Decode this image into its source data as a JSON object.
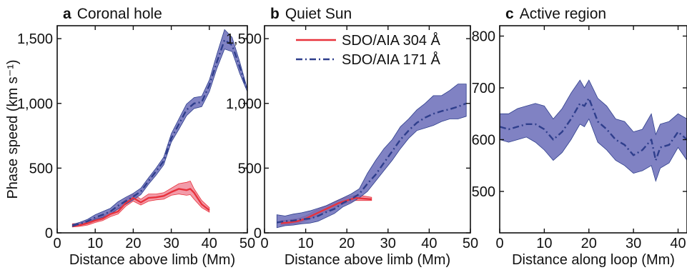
{
  "colors": {
    "red_line": "#e8323c",
    "red_band": "#f08a9a",
    "blue_line": "#2e3e8c",
    "blue_band": "#6a6cb8",
    "axis": "#111111"
  },
  "legend": {
    "items": [
      {
        "label": "SDO/AIA 304 Å",
        "color": "#e8323c",
        "style": "solid"
      },
      {
        "label": "SDO/AIA 171 Å",
        "color": "#2e3e8c",
        "style": "dash-dot"
      }
    ]
  },
  "chart_data": [
    {
      "type": "line",
      "panel_letter": "a",
      "title": "Coronal hole",
      "xlabel": "Distance above limb (Mm)",
      "ylabel": "Phase speed (km s⁻¹)",
      "xlim": [
        0,
        50
      ],
      "ylim": [
        0,
        1600
      ],
      "xticks": [
        0,
        10,
        20,
        30,
        40,
        50
      ],
      "xtick_labels": [
        "0",
        "10",
        "20",
        "30",
        "40",
        "50"
      ],
      "yticks": [
        0,
        500,
        1000,
        1500
      ],
      "ytick_labels": [
        "0",
        "500",
        "1,000",
        "1,500"
      ],
      "series": [
        {
          "color": "#e8323c",
          "band_color": "#f08a9a",
          "style": "solid",
          "x": [
            4,
            6,
            8,
            10,
            12,
            14,
            16,
            18,
            20,
            22,
            24,
            26,
            28,
            30,
            32,
            34,
            35,
            36,
            38,
            40
          ],
          "y": [
            55,
            60,
            75,
            95,
            110,
            145,
            165,
            230,
            270,
            235,
            270,
            275,
            285,
            315,
            340,
            330,
            340,
            310,
            220,
            175
          ],
          "lower": [
            45,
            50,
            60,
            80,
            95,
            125,
            145,
            205,
            245,
            215,
            245,
            255,
            260,
            290,
            300,
            290,
            295,
            260,
            195,
            160
          ],
          "upper": [
            70,
            75,
            90,
            115,
            130,
            170,
            200,
            260,
            300,
            260,
            300,
            300,
            310,
            345,
            380,
            390,
            400,
            340,
            250,
            195
          ]
        },
        {
          "color": "#2e3e8c",
          "band_color": "#6a6cb8",
          "style": "dash-dot",
          "x": [
            4,
            6,
            8,
            10,
            12,
            14,
            16,
            18,
            20,
            22,
            24,
            26,
            28,
            30,
            32,
            34,
            36,
            38,
            40,
            42,
            44,
            46,
            48,
            50
          ],
          "y": [
            55,
            70,
            90,
            120,
            140,
            165,
            210,
            245,
            280,
            320,
            400,
            475,
            555,
            730,
            840,
            950,
            1000,
            1010,
            1140,
            1320,
            1490,
            1450,
            1280,
            1100
          ],
          "lower": [
            48,
            60,
            78,
            105,
            120,
            145,
            185,
            220,
            255,
            295,
            375,
            445,
            525,
            700,
            800,
            905,
            960,
            975,
            1090,
            1270,
            1420,
            1400,
            1230,
            1090
          ],
          "upper": [
            65,
            82,
            105,
            140,
            165,
            190,
            240,
            275,
            305,
            345,
            425,
            500,
            585,
            765,
            880,
            995,
            1045,
            1055,
            1180,
            1380,
            1570,
            1510,
            1320,
            1110
          ]
        }
      ]
    },
    {
      "type": "line",
      "panel_letter": "b",
      "title": "Quiet Sun",
      "xlabel": "Distance above limb (Mm)",
      "ylabel": "",
      "xlim": [
        0,
        50
      ],
      "ylim": [
        0,
        1600
      ],
      "xticks": [
        0,
        10,
        20,
        30,
        40,
        50
      ],
      "xtick_labels": [
        "0",
        "10",
        "20",
        "30",
        "40",
        "50"
      ],
      "yticks": [
        0,
        500,
        1000,
        1500
      ],
      "ytick_labels": [
        "0",
        "500",
        "1,000",
        "1,500"
      ],
      "series": [
        {
          "color": "#e8323c",
          "band_color": "#f08a9a",
          "style": "solid",
          "x": [
            4,
            6,
            8,
            10,
            12,
            14,
            16,
            18,
            20,
            22,
            24,
            26
          ],
          "y": [
            75,
            80,
            90,
            110,
            140,
            170,
            200,
            230,
            250,
            270,
            265,
            260
          ],
          "lower": [
            60,
            65,
            75,
            95,
            120,
            150,
            180,
            210,
            230,
            250,
            250,
            250
          ],
          "upper": [
            95,
            100,
            110,
            130,
            165,
            195,
            225,
            255,
            275,
            290,
            285,
            275
          ]
        },
        {
          "color": "#2e3e8c",
          "band_color": "#6a6cb8",
          "style": "dash-dot",
          "x": [
            3,
            5,
            7,
            9,
            11,
            13,
            15,
            17,
            19,
            21,
            23,
            25,
            27,
            29,
            31,
            33,
            35,
            37,
            39,
            41,
            43,
            45,
            47,
            49
          ],
          "y": [
            80,
            90,
            95,
            105,
            110,
            130,
            160,
            185,
            230,
            260,
            300,
            380,
            450,
            540,
            630,
            720,
            790,
            850,
            890,
            920,
            940,
            955,
            975,
            1000
          ],
          "lower": [
            40,
            55,
            60,
            70,
            75,
            90,
            120,
            150,
            200,
            230,
            270,
            320,
            400,
            480,
            560,
            650,
            730,
            790,
            810,
            830,
            860,
            880,
            880,
            900
          ],
          "upper": [
            140,
            130,
            145,
            155,
            170,
            190,
            210,
            240,
            270,
            300,
            340,
            460,
            560,
            650,
            720,
            820,
            880,
            950,
            1000,
            1060,
            1060,
            1100,
            1150,
            1150
          ]
        }
      ]
    },
    {
      "type": "line",
      "panel_letter": "c",
      "title": "Active region",
      "xlabel": "Distance along loop (Mm)",
      "ylabel": "",
      "xlim": [
        0,
        42
      ],
      "ylim": [
        420,
        820
      ],
      "xticks": [
        0,
        10,
        20,
        30,
        40
      ],
      "xtick_labels": [
        "0",
        "10",
        "20",
        "30",
        "40"
      ],
      "yticks": [
        500,
        600,
        700,
        800
      ],
      "ytick_labels": [
        "500",
        "600",
        "700",
        "800"
      ],
      "series": [
        {
          "color": "#2e3e8c",
          "band_color": "#6a6cb8",
          "style": "dash-dot",
          "x": [
            0,
            2,
            4,
            6,
            8,
            10,
            12,
            14,
            16,
            18,
            19,
            20,
            22,
            24,
            26,
            28,
            30,
            32,
            34,
            35,
            36,
            38,
            40,
            42
          ],
          "y": [
            625,
            620,
            625,
            630,
            630,
            620,
            600,
            615,
            640,
            670,
            665,
            680,
            635,
            620,
            600,
            590,
            570,
            580,
            600,
            560,
            585,
            590,
            615,
            600
          ],
          "lower": [
            600,
            595,
            600,
            605,
            595,
            580,
            560,
            575,
            600,
            630,
            625,
            640,
            595,
            580,
            560,
            550,
            535,
            540,
            550,
            520,
            545,
            555,
            585,
            560
          ],
          "upper": [
            650,
            650,
            660,
            665,
            670,
            665,
            640,
            660,
            690,
            715,
            700,
            715,
            680,
            665,
            640,
            635,
            615,
            620,
            650,
            610,
            630,
            635,
            650,
            640
          ]
        }
      ]
    }
  ]
}
